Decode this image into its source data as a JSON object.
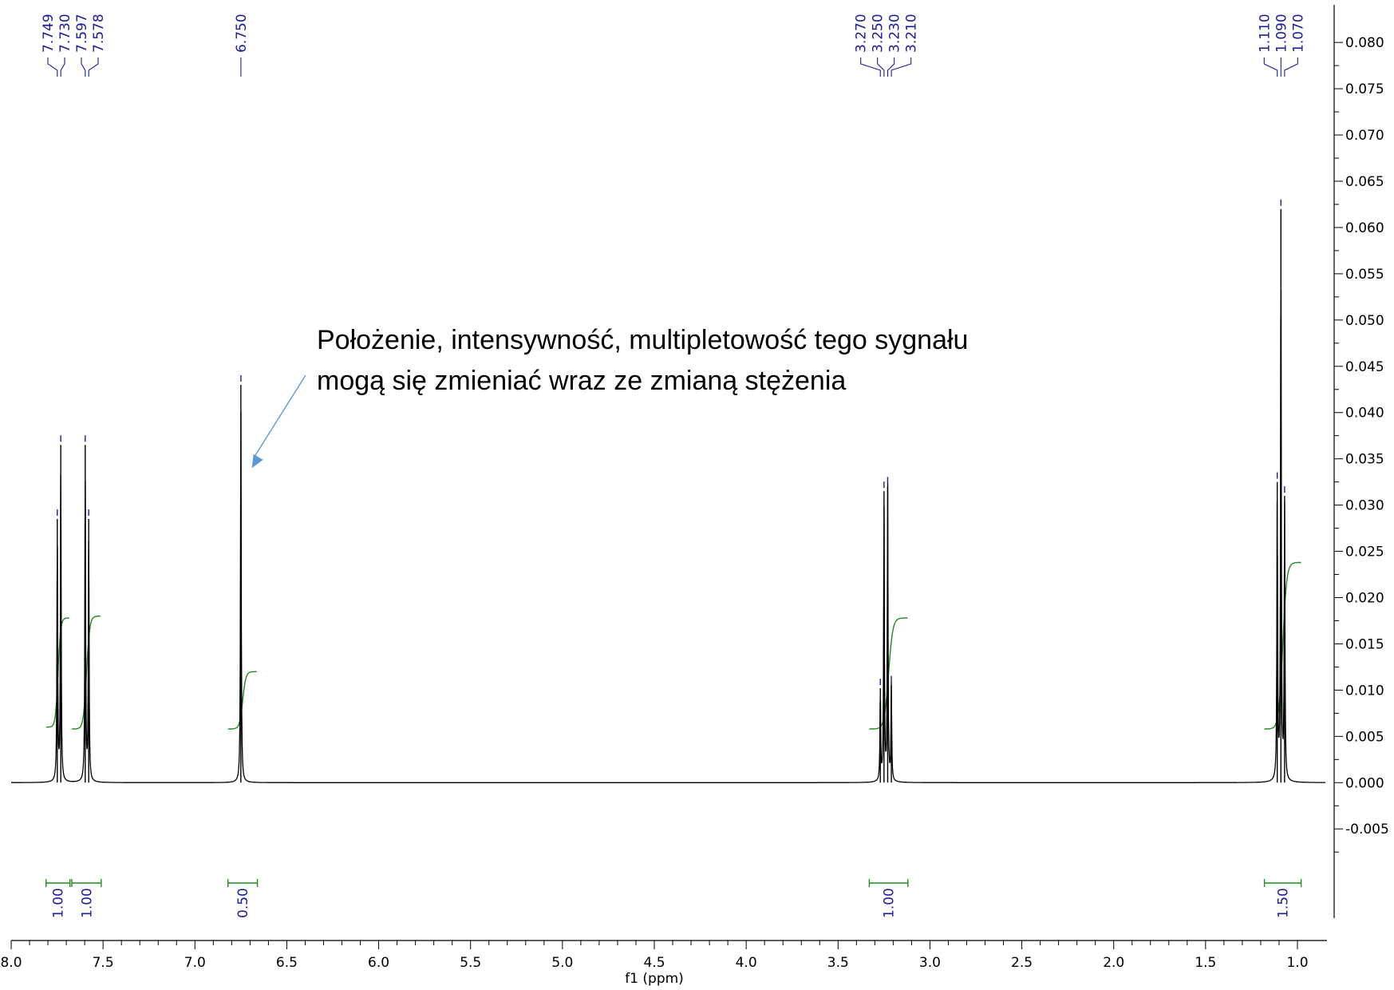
{
  "chart_data": {
    "type": "line",
    "title": "",
    "xlabel": "f1 (ppm)",
    "ylabel": "",
    "xlim": [
      8.0,
      0.9
    ],
    "ylim": [
      -0.008,
      0.082
    ],
    "x_ticks": [
      8.0,
      7.5,
      7.0,
      6.5,
      6.0,
      5.5,
      5.0,
      4.5,
      4.0,
      3.5,
      3.0,
      2.5,
      2.0,
      1.5,
      1.0
    ],
    "x_tick_labels": [
      "8.0",
      "7.5",
      "7.0",
      "6.5",
      "6.0",
      "5.5",
      "5.0",
      "4.5",
      "4.0",
      "3.5",
      "3.0",
      "2.5",
      "2.0",
      "1.5",
      "1.0"
    ],
    "y_ticks": [
      0.08,
      0.075,
      0.07,
      0.065,
      0.06,
      0.055,
      0.05,
      0.045,
      0.04,
      0.035,
      0.03,
      0.025,
      0.02,
      0.015,
      0.01,
      0.005,
      0.0,
      -0.005
    ],
    "y_tick_labels": [
      "0.080",
      "0.075",
      "0.070",
      "0.065",
      "0.060",
      "0.055",
      "0.050",
      "0.045",
      "0.040",
      "0.035",
      "0.030",
      "0.025",
      "0.020",
      "0.015",
      "0.010",
      "0.005",
      "0.000",
      "-0.005"
    ],
    "y_axis_side": "right",
    "grid": false,
    "spectrum_peaks": [
      {
        "ppm": 7.749,
        "height": 0.0285
      },
      {
        "ppm": 7.73,
        "height": 0.0365
      },
      {
        "ppm": 7.597,
        "height": 0.0365
      },
      {
        "ppm": 7.578,
        "height": 0.0285
      },
      {
        "ppm": 6.75,
        "height": 0.043
      },
      {
        "ppm": 3.27,
        "height": 0.0102
      },
      {
        "ppm": 3.25,
        "height": 0.0315
      },
      {
        "ppm": 3.23,
        "height": 0.032
      },
      {
        "ppm": 3.21,
        "height": 0.0105
      },
      {
        "ppm": 1.11,
        "height": 0.0325
      },
      {
        "ppm": 1.09,
        "height": 0.062
      },
      {
        "ppm": 1.07,
        "height": 0.031
      }
    ],
    "peak_labels": [
      {
        "text": "7.749",
        "ppm": 7.749
      },
      {
        "text": "7.730",
        "ppm": 7.73
      },
      {
        "text": "7.597",
        "ppm": 7.597
      },
      {
        "text": "7.578",
        "ppm": 7.578
      },
      {
        "text": "6.750",
        "ppm": 6.75
      },
      {
        "text": "3.270",
        "ppm": 3.27
      },
      {
        "text": "3.250",
        "ppm": 3.25
      },
      {
        "text": "3.230",
        "ppm": 3.23
      },
      {
        "text": "3.210",
        "ppm": 3.21
      },
      {
        "text": "1.110",
        "ppm": 1.11
      },
      {
        "text": "1.090",
        "ppm": 1.09
      },
      {
        "text": "1.070",
        "ppm": 1.07
      }
    ],
    "integrals": [
      {
        "from": 7.81,
        "to": 7.68,
        "value": "1.00",
        "curve_start": 0.006,
        "curve_end": 0.0178
      },
      {
        "from": 7.67,
        "to": 7.51,
        "value": "1.00",
        "curve_start": 0.0058,
        "curve_end": 0.018
      },
      {
        "from": 6.82,
        "to": 6.66,
        "value": "0.50",
        "curve_start": 0.0058,
        "curve_end": 0.012
      },
      {
        "from": 3.33,
        "to": 3.12,
        "value": "1.00",
        "curve_start": 0.0058,
        "curve_end": 0.0178
      },
      {
        "from": 1.18,
        "to": 0.98,
        "value": "1.50",
        "curve_start": 0.0058,
        "curve_end": 0.0238
      }
    ],
    "annotation": {
      "lines": [
        "Położenie, intensywność, multipletowość tego sygnału",
        "mogą się zmieniać wraz ze zmianą stężenia"
      ],
      "arrow_target_ppm": 6.69,
      "arrow_target_y": 0.034
    },
    "colors": {
      "spectrum": "#000000",
      "peak_label": "#1a1a9e",
      "integral": "#1e8c1e",
      "arrow": "#5b9bd5"
    }
  }
}
